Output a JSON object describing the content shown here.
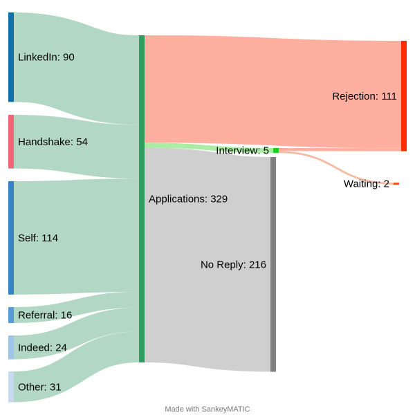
{
  "chart_data": {
    "type": "sankey",
    "nodes": [
      {
        "id": "linkedin",
        "label": "LinkedIn: 90",
        "name": "LinkedIn",
        "value": 90,
        "color": "#1170aa"
      },
      {
        "id": "handshake",
        "label": "Handshake: 54",
        "name": "Handshake",
        "value": 54,
        "color": "#ee6677"
      },
      {
        "id": "self",
        "label": "Self: 114",
        "name": "Self",
        "value": 114,
        "color": "#3b82c4"
      },
      {
        "id": "referral",
        "label": "Referral: 16",
        "name": "Referral",
        "value": 16,
        "color": "#5b9bd5"
      },
      {
        "id": "indeed",
        "label": "Indeed: 24",
        "name": "Indeed",
        "value": 24,
        "color": "#9ec5e8"
      },
      {
        "id": "other",
        "label": "Other: 31",
        "name": "Other",
        "value": 31,
        "color": "#c6d9ef"
      },
      {
        "id": "applications",
        "label": "Applications: 329",
        "name": "Applications",
        "value": 329,
        "color": "#2e9d5f"
      },
      {
        "id": "rejection",
        "label": "Rejection: 111",
        "name": "Rejection",
        "value": 111,
        "color": "#ff2a00"
      },
      {
        "id": "interview",
        "label": "Interview: 5",
        "name": "Interview",
        "value": 5,
        "color": "#22cc22"
      },
      {
        "id": "noreply",
        "label": "No Reply: 216",
        "name": "No Reply",
        "value": 216,
        "color": "#808080"
      },
      {
        "id": "waiting",
        "label": "Waiting: 2",
        "name": "Waiting",
        "value": 2,
        "color": "#ee5522"
      }
    ],
    "links": [
      {
        "source": "linkedin",
        "target": "applications",
        "value": 90,
        "color": "#aed5c2"
      },
      {
        "source": "handshake",
        "target": "applications",
        "value": 54,
        "color": "#aed5c2"
      },
      {
        "source": "self",
        "target": "applications",
        "value": 114,
        "color": "#aed5c2"
      },
      {
        "source": "referral",
        "target": "applications",
        "value": 16,
        "color": "#aed5c2"
      },
      {
        "source": "indeed",
        "target": "applications",
        "value": 24,
        "color": "#aed5c2"
      },
      {
        "source": "other",
        "target": "applications",
        "value": 31,
        "color": "#aed5c2"
      },
      {
        "source": "applications",
        "target": "rejection",
        "value": 108,
        "color": "#ffab9a"
      },
      {
        "source": "applications",
        "target": "interview",
        "value": 5,
        "color": "#a8eca0"
      },
      {
        "source": "applications",
        "target": "noreply",
        "value": 216,
        "color": "#cccccc"
      },
      {
        "source": "interview",
        "target": "rejection",
        "value": 3,
        "color": "#ffab9a"
      },
      {
        "source": "interview",
        "target": "waiting",
        "value": 2,
        "color": "#f4b8a0"
      }
    ]
  },
  "footer": "Made with SankeyMATIC"
}
